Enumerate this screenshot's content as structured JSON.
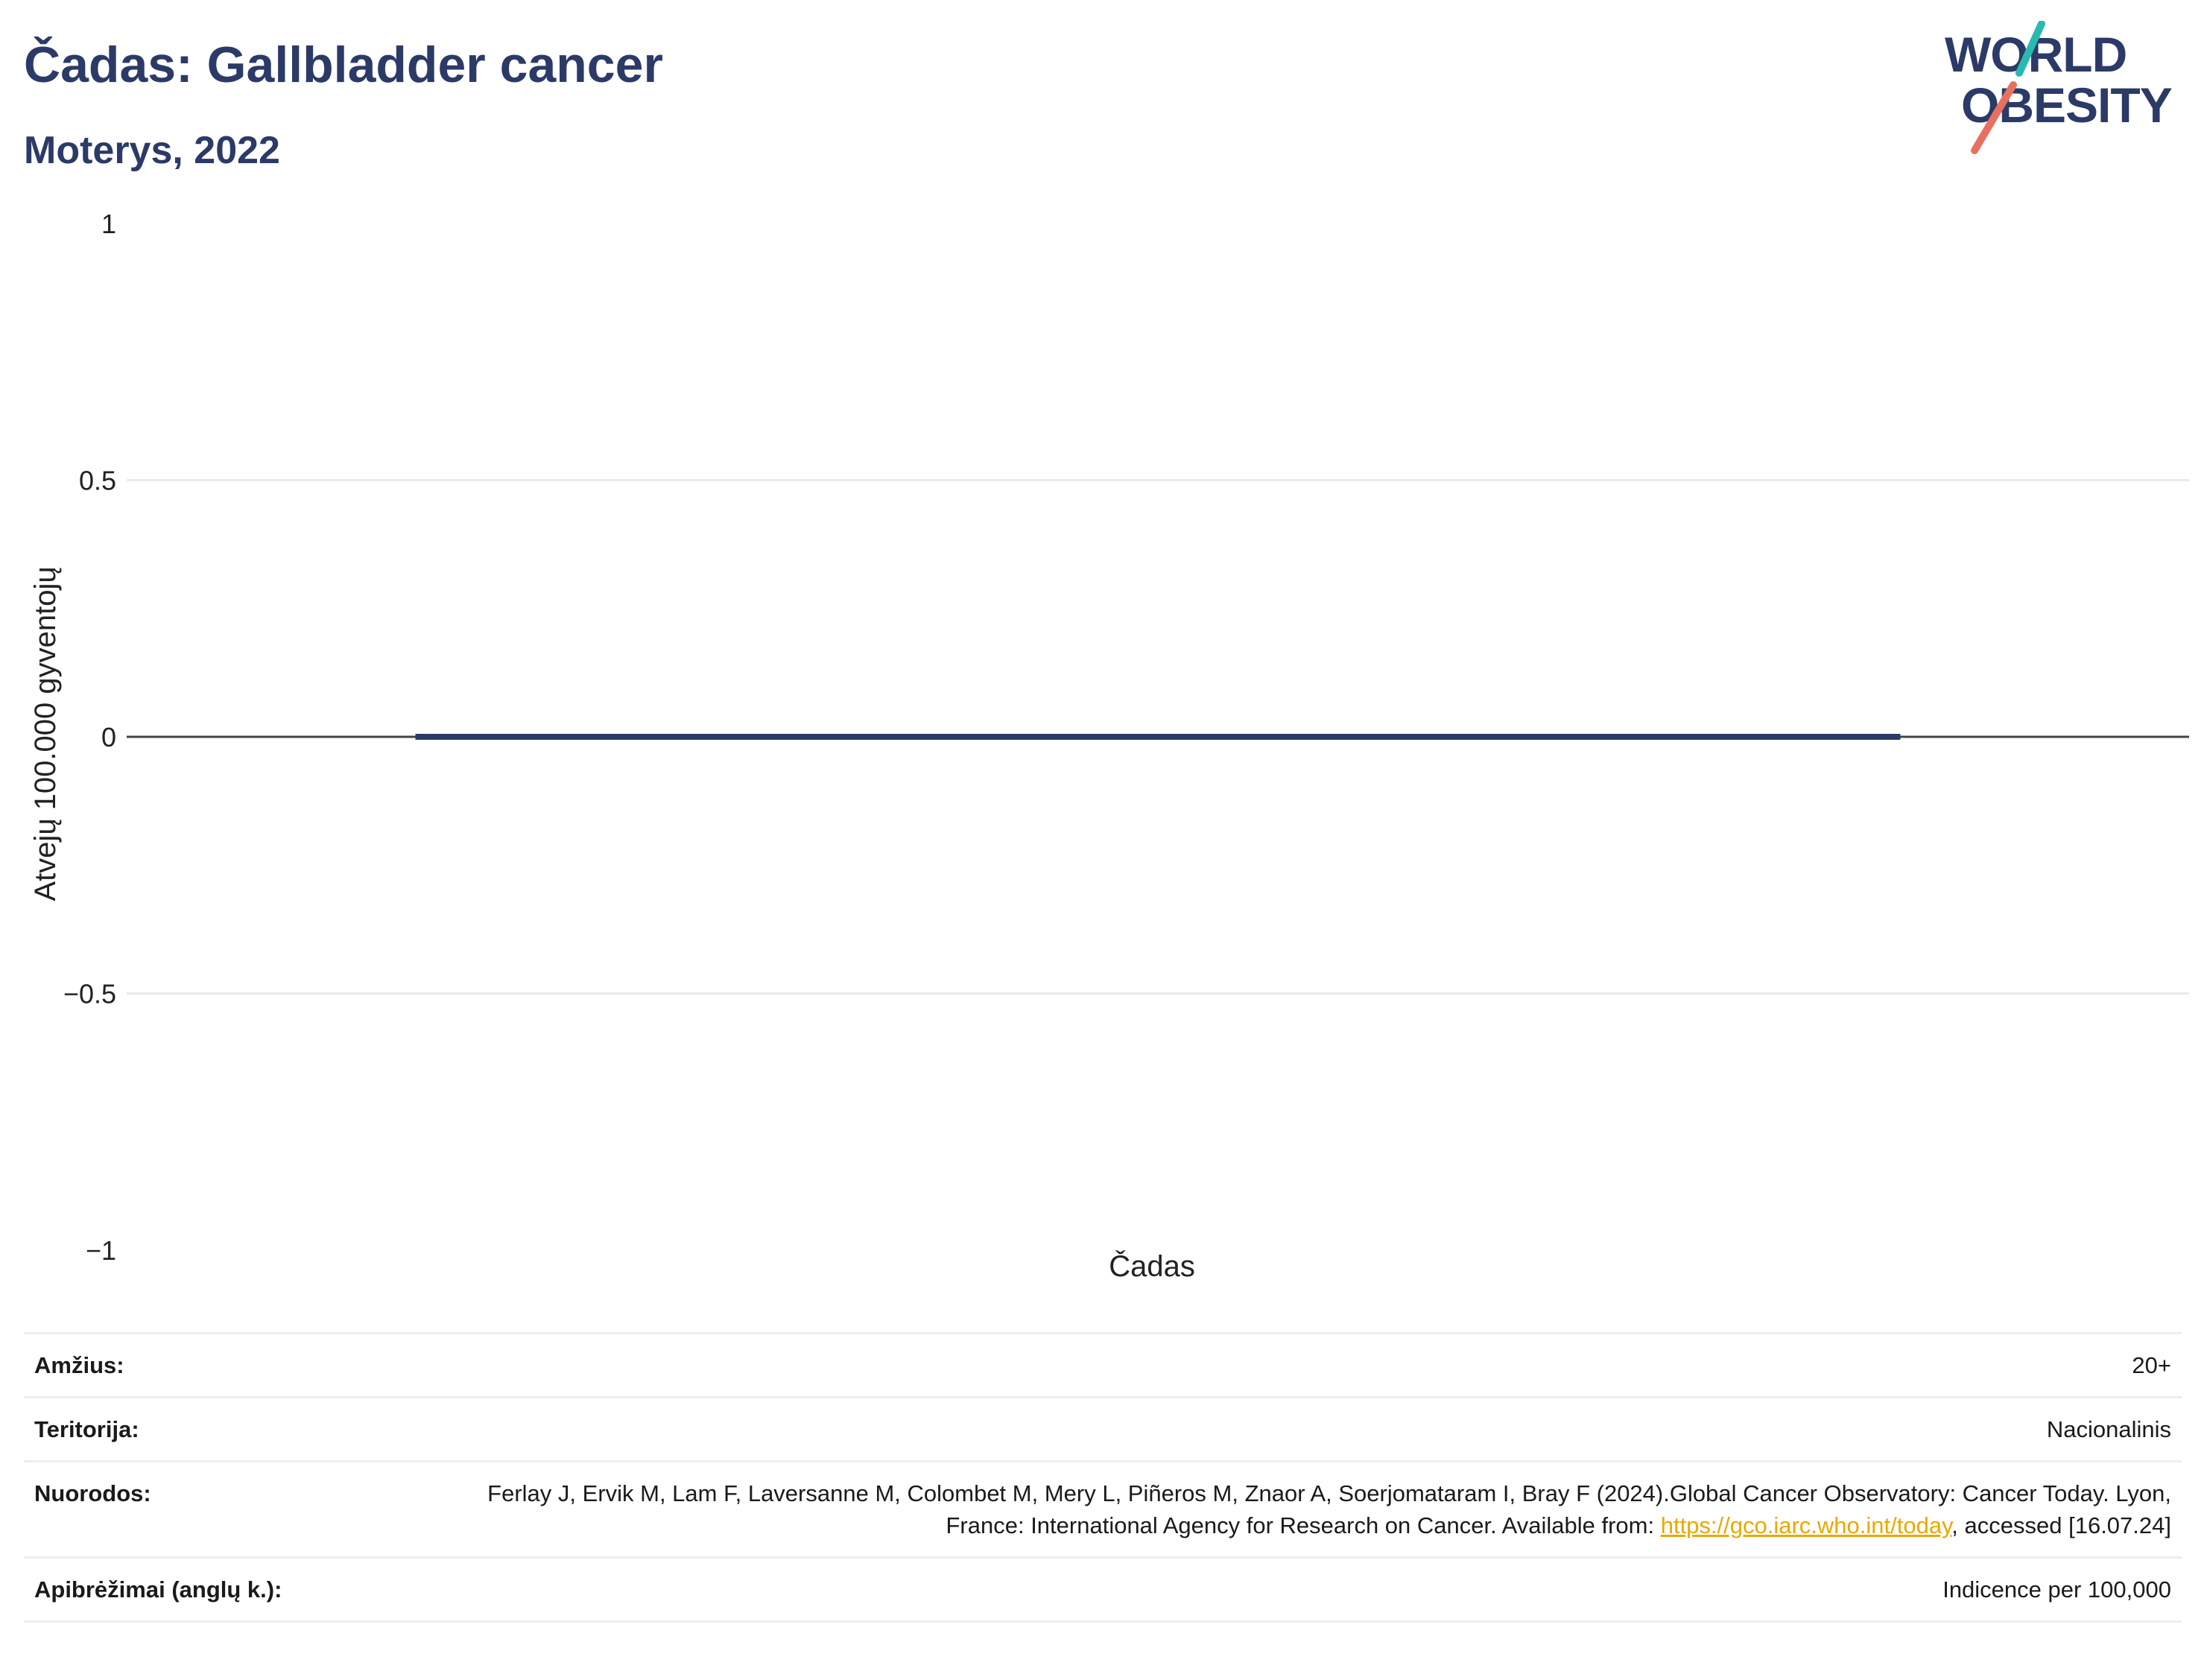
{
  "header": {
    "title": "Čadas: Gallbladder cancer",
    "subtitle": "Moterys, 2022"
  },
  "logo": {
    "line1": "WORLD",
    "line2": "OBESITY",
    "colors": {
      "text": "#2b3a67",
      "slash_top": "#2bb8b0",
      "slash_bottom": "#e8705f"
    }
  },
  "colors": {
    "title": "#2b3a67",
    "bar": "#2b3a67",
    "grid": "#e8eaee",
    "zero_line": "#444444",
    "link": "#e8a900"
  },
  "chart_data": {
    "type": "bar",
    "categories": [
      "Čadas"
    ],
    "values": [
      0
    ],
    "ylabel": "Atvejų 100.000 gyventojų",
    "xlabel": "Čadas",
    "ylim": [
      -1,
      1
    ],
    "yticks": [
      1,
      0.5,
      0,
      -0.5,
      -1
    ],
    "ytick_labels": [
      "1",
      "0.5",
      "0",
      "−0.5",
      "−1"
    ],
    "grid": true,
    "legend": "none"
  },
  "info": {
    "age_label": "Amžius:",
    "age_value": "20+",
    "territory_label": "Teritorija:",
    "territory_value": "Nacionalinis",
    "refs_label": "Nuorodos:",
    "refs_text_before": "Ferlay J, Ervik M, Lam F, Laversanne M, Colombet M, Mery L, Piñeros M, Znaor A, Soerjomataram I, Bray F (2024).Global Cancer Observatory: Cancer Today. Lyon, France: International Agency for Research on Cancer. Available from: ",
    "refs_link": "https://gco.iarc.who.int/today",
    "refs_text_after": ", accessed [16.07.24]",
    "definitions_label": "Apibrėžimai (anglų k.):",
    "definitions_value": "Indicence per 100,000"
  }
}
